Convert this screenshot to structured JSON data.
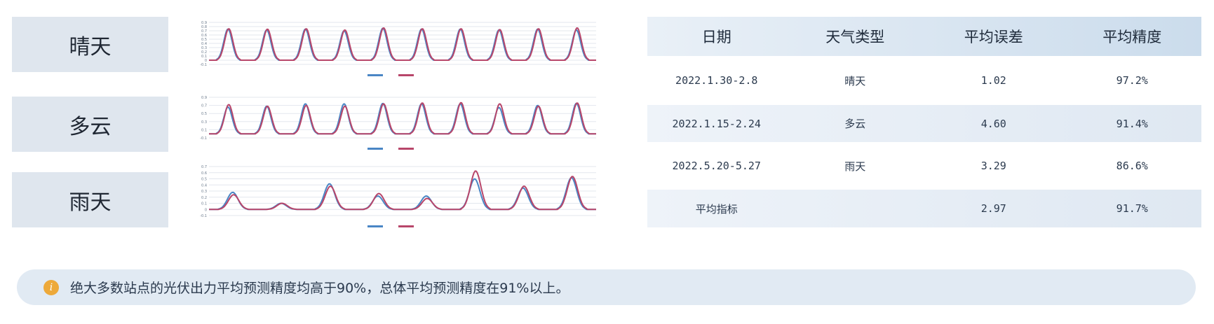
{
  "labels": [
    "晴天",
    "多云",
    "雨天"
  ],
  "table": {
    "headers": [
      "日期",
      "天气类型",
      "平均误差",
      "平均精度"
    ],
    "rows": [
      [
        "2022.1.30-2.8",
        "晴天",
        "1.02",
        "97.2%"
      ],
      [
        "2022.1.15-2.24",
        "多云",
        "4.60",
        "91.4%"
      ],
      [
        "2022.5.20-5.27",
        "雨天",
        "3.29",
        "86.6%"
      ],
      [
        "平均指标",
        "",
        "2.97",
        "91.7%"
      ]
    ]
  },
  "banner": {
    "icon": "info-icon",
    "icon_glyph": "i",
    "text": "绝大多数站点的光伏出力平均预测精度均高于90%，总体平均预测精度在91%以上。"
  },
  "colors": {
    "predicted": "#4a86c5",
    "actual": "#b8466a",
    "label_bg": "#dfe6ee",
    "info": "#eda93a"
  },
  "chart_data": [
    {
      "type": "line",
      "weather": "晴天",
      "ylim": [
        -0.1,
        0.9
      ],
      "yticks": [
        -0.1,
        0,
        0.1,
        0.2,
        0.3,
        0.4,
        0.5,
        0.6,
        0.7,
        0.8,
        0.9
      ],
      "grid": true,
      "legend": "bottom",
      "series": [
        {
          "color": "#4a86c5",
          "daily_peaks": [
            0.74,
            0.72,
            0.74,
            0.7,
            0.76,
            0.74,
            0.74,
            0.72,
            0.74,
            0.72
          ]
        },
        {
          "color": "#b8466a",
          "daily_peaks": [
            0.75,
            0.74,
            0.75,
            0.72,
            0.77,
            0.75,
            0.75,
            0.73,
            0.75,
            0.77
          ]
        }
      ]
    },
    {
      "type": "line",
      "weather": "多云",
      "ylim": [
        -0.1,
        0.9
      ],
      "yticks": [
        -0.1,
        0.1,
        0.3,
        0.5,
        0.7,
        0.9
      ],
      "grid": true,
      "legend": "bottom",
      "series": [
        {
          "color": "#4a86c5",
          "daily_peaks": [
            0.66,
            0.68,
            0.74,
            0.74,
            0.75,
            0.74,
            0.74,
            0.65,
            0.7,
            0.75
          ]
        },
        {
          "color": "#b8466a",
          "daily_peaks": [
            0.72,
            0.68,
            0.7,
            0.68,
            0.74,
            0.76,
            0.77,
            0.74,
            0.68,
            0.76
          ]
        }
      ]
    },
    {
      "type": "line",
      "weather": "雨天",
      "ylim": [
        -0.1,
        0.7
      ],
      "yticks": [
        -0.1,
        0,
        0.1,
        0.2,
        0.3,
        0.4,
        0.5,
        0.6,
        0.7
      ],
      "grid": true,
      "legend": "bottom",
      "series": [
        {
          "color": "#4a86c5",
          "daily_peaks": [
            0.28,
            0.1,
            0.42,
            0.22,
            0.22,
            0.5,
            0.35,
            0.52
          ]
        },
        {
          "color": "#b8466a",
          "daily_peaks": [
            0.24,
            0.1,
            0.38,
            0.26,
            0.18,
            0.63,
            0.38,
            0.54
          ]
        }
      ]
    }
  ]
}
